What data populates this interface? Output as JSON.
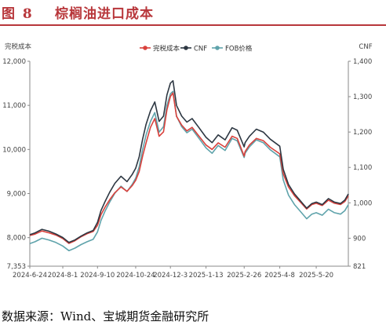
{
  "figure": {
    "label": "图 8",
    "title": "棕榈油进口成本"
  },
  "source": "数据来源：Wind、宝城期货金融研究所",
  "colors": {
    "duty_paid": "#d9413c",
    "cnf": "#2d3742",
    "fob": "#5fa3ab",
    "title": "#b8373b"
  },
  "chart_data": {
    "type": "line",
    "left_axis": {
      "label": "完税成本",
      "min": 7353,
      "max": 12000,
      "ticks": [
        7353,
        8000,
        9000,
        10000,
        11000,
        12000
      ],
      "tick_labels": [
        "7,353",
        "8,000",
        "9,000",
        "10,000",
        "11,000",
        "12,000"
      ]
    },
    "right_axis": {
      "label": "CNF",
      "min": 821,
      "max": 1400,
      "ticks": [
        821,
        900,
        1000,
        1100,
        1200,
        1300,
        1400
      ],
      "tick_labels": [
        "821",
        "900",
        "1,000",
        "1,100",
        "1,200",
        "1,300",
        "1,400"
      ]
    },
    "x_tick_labels": [
      "2024-6-24",
      "2024-8-1",
      "2024-9-10",
      "2024-10-24",
      "2024-12-3",
      "2025-1-13",
      "2025-2-26",
      "2025-4-8",
      "2025-5-20"
    ],
    "x_range": [
      "2024-6-24",
      "2025-6-26"
    ],
    "legend": {
      "position": "top-center",
      "entries": [
        "完税成本",
        "CNF",
        "FOB价格"
      ]
    },
    "grid": false,
    "series": [
      {
        "name": "完税成本",
        "axis": "left",
        "points": [
          [
            "2024-6-24",
            8050
          ],
          [
            "2024-6-30",
            8080
          ],
          [
            "2024-7-8",
            8150
          ],
          [
            "2024-7-16",
            8110
          ],
          [
            "2024-7-24",
            8060
          ],
          [
            "2024-8-1",
            7980
          ],
          [
            "2024-8-8",
            7870
          ],
          [
            "2024-8-15",
            7930
          ],
          [
            "2024-8-22",
            8020
          ],
          [
            "2024-8-29",
            8090
          ],
          [
            "2024-9-5",
            8140
          ],
          [
            "2024-9-10",
            8280
          ],
          [
            "2024-9-14",
            8520
          ],
          [
            "2024-9-19",
            8700
          ],
          [
            "2024-9-24",
            8860
          ],
          [
            "2024-9-30",
            9020
          ],
          [
            "2024-10-7",
            9150
          ],
          [
            "2024-10-14",
            9050
          ],
          [
            "2024-10-20",
            9180
          ],
          [
            "2024-10-24",
            9300
          ],
          [
            "2024-10-28",
            9500
          ],
          [
            "2024-11-1",
            9850
          ],
          [
            "2024-11-5",
            10150
          ],
          [
            "2024-11-10",
            10500
          ],
          [
            "2024-11-15",
            10700
          ],
          [
            "2024-11-20",
            10300
          ],
          [
            "2024-11-25",
            10400
          ],
          [
            "2024-11-29",
            10900
          ],
          [
            "2024-12-3",
            11200
          ],
          [
            "2024-12-6",
            11280
          ],
          [
            "2024-12-10",
            10750
          ],
          [
            "2024-12-16",
            10550
          ],
          [
            "2024-12-22",
            10420
          ],
          [
            "2024-12-28",
            10500
          ],
          [
            "2025-1-5",
            10300
          ],
          [
            "2025-1-13",
            10100
          ],
          [
            "2025-1-20",
            10000
          ],
          [
            "2025-1-27",
            10150
          ],
          [
            "2025-2-4",
            10050
          ],
          [
            "2025-2-12",
            10300
          ],
          [
            "2025-2-18",
            10250
          ],
          [
            "2025-2-26",
            9850
          ],
          [
            "2025-2-27",
            9950
          ],
          [
            "2025-3-4",
            10100
          ],
          [
            "2025-3-12",
            10250
          ],
          [
            "2025-3-20",
            10200
          ],
          [
            "2025-3-28",
            10050
          ],
          [
            "2025-4-8",
            9900
          ],
          [
            "2025-4-12",
            9450
          ],
          [
            "2025-4-18",
            9150
          ],
          [
            "2025-4-25",
            8950
          ],
          [
            "2025-5-2",
            8800
          ],
          [
            "2025-5-9",
            8650
          ],
          [
            "2025-5-15",
            8750
          ],
          [
            "2025-5-20",
            8780
          ],
          [
            "2025-5-27",
            8730
          ],
          [
            "2025-6-3",
            8850
          ],
          [
            "2025-6-10",
            8780
          ],
          [
            "2025-6-17",
            8750
          ],
          [
            "2025-6-22",
            8820
          ],
          [
            "2025-6-26",
            8950
          ]
        ]
      },
      {
        "name": "CNF",
        "axis": "right",
        "points": [
          [
            "2024-6-24",
            910
          ],
          [
            "2024-6-30",
            915
          ],
          [
            "2024-7-8",
            925
          ],
          [
            "2024-7-16",
            920
          ],
          [
            "2024-7-24",
            912
          ],
          [
            "2024-8-1",
            902
          ],
          [
            "2024-8-8",
            888
          ],
          [
            "2024-8-15",
            895
          ],
          [
            "2024-8-22",
            906
          ],
          [
            "2024-8-29",
            915
          ],
          [
            "2024-9-5",
            922
          ],
          [
            "2024-9-10",
            945
          ],
          [
            "2024-9-14",
            978
          ],
          [
            "2024-9-19",
            1005
          ],
          [
            "2024-9-24",
            1030
          ],
          [
            "2024-9-30",
            1055
          ],
          [
            "2024-10-7",
            1075
          ],
          [
            "2024-10-14",
            1060
          ],
          [
            "2024-10-20",
            1080
          ],
          [
            "2024-10-24",
            1098
          ],
          [
            "2024-10-28",
            1130
          ],
          [
            "2024-11-1",
            1180
          ],
          [
            "2024-11-5",
            1222
          ],
          [
            "2024-11-10",
            1260
          ],
          [
            "2024-11-15",
            1285
          ],
          [
            "2024-11-20",
            1230
          ],
          [
            "2024-11-25",
            1245
          ],
          [
            "2024-11-29",
            1305
          ],
          [
            "2024-12-3",
            1338
          ],
          [
            "2024-12-6",
            1345
          ],
          [
            "2024-12-10",
            1275
          ],
          [
            "2024-12-16",
            1245
          ],
          [
            "2024-12-22",
            1228
          ],
          [
            "2024-12-28",
            1238
          ],
          [
            "2025-1-5",
            1212
          ],
          [
            "2025-1-13",
            1185
          ],
          [
            "2025-1-20",
            1170
          ],
          [
            "2025-1-27",
            1192
          ],
          [
            "2025-2-4",
            1178
          ],
          [
            "2025-2-12",
            1212
          ],
          [
            "2025-2-18",
            1205
          ],
          [
            "2025-2-26",
            1158
          ],
          [
            "2025-2-27",
            1170
          ],
          [
            "2025-3-4",
            1188
          ],
          [
            "2025-3-12",
            1208
          ],
          [
            "2025-3-20",
            1200
          ],
          [
            "2025-3-28",
            1180
          ],
          [
            "2025-4-8",
            1160
          ],
          [
            "2025-4-12",
            1095
          ],
          [
            "2025-4-18",
            1052
          ],
          [
            "2025-4-25",
            1025
          ],
          [
            "2025-5-2",
            1005
          ],
          [
            "2025-5-9",
            985
          ],
          [
            "2025-5-15",
            998
          ],
          [
            "2025-5-20",
            1002
          ],
          [
            "2025-5-27",
            995
          ],
          [
            "2025-6-3",
            1012
          ],
          [
            "2025-6-10",
            1002
          ],
          [
            "2025-6-17",
            998
          ],
          [
            "2025-6-22",
            1008
          ],
          [
            "2025-6-26",
            1025
          ]
        ]
      },
      {
        "name": "FOB价格",
        "axis": "right",
        "points": [
          [
            "2024-6-24",
            885
          ],
          [
            "2024-6-30",
            890
          ],
          [
            "2024-7-8",
            900
          ],
          [
            "2024-7-16",
            895
          ],
          [
            "2024-7-24",
            888
          ],
          [
            "2024-8-1",
            878
          ],
          [
            "2024-8-8",
            865
          ],
          [
            "2024-8-15",
            872
          ],
          [
            "2024-8-22",
            882
          ],
          [
            "2024-8-29",
            890
          ],
          [
            "2024-9-5",
            897
          ],
          [
            "2024-9-10",
            918
          ],
          [
            "2024-9-14",
            950
          ],
          [
            "2024-9-19",
            978
          ],
          [
            "2024-9-24",
            1002
          ],
          [
            "2024-9-30",
            1027
          ],
          [
            "2024-10-7",
            1047
          ],
          [
            "2024-10-14",
            1032
          ],
          [
            "2024-10-20",
            1052
          ],
          [
            "2024-10-24",
            1070
          ],
          [
            "2024-10-28",
            1102
          ],
          [
            "2024-11-1",
            1150
          ],
          [
            "2024-11-5",
            1192
          ],
          [
            "2024-11-10",
            1230
          ],
          [
            "2024-11-15",
            1255
          ],
          [
            "2024-11-20",
            1200
          ],
          [
            "2024-11-25",
            1215
          ],
          [
            "2024-11-29",
            1275
          ],
          [
            "2024-12-3",
            1308
          ],
          [
            "2024-12-6",
            1315
          ],
          [
            "2024-12-10",
            1245
          ],
          [
            "2024-12-16",
            1215
          ],
          [
            "2024-12-22",
            1198
          ],
          [
            "2024-12-28",
            1208
          ],
          [
            "2025-1-5",
            1182
          ],
          [
            "2025-1-13",
            1155
          ],
          [
            "2025-1-20",
            1140
          ],
          [
            "2025-1-27",
            1162
          ],
          [
            "2025-2-4",
            1148
          ],
          [
            "2025-2-12",
            1182
          ],
          [
            "2025-2-18",
            1175
          ],
          [
            "2025-2-26",
            1128
          ],
          [
            "2025-2-27",
            1140
          ],
          [
            "2025-3-4",
            1158
          ],
          [
            "2025-3-12",
            1178
          ],
          [
            "2025-3-20",
            1170
          ],
          [
            "2025-3-28",
            1150
          ],
          [
            "2025-4-8",
            1130
          ],
          [
            "2025-4-12",
            1065
          ],
          [
            "2025-4-18",
            1022
          ],
          [
            "2025-4-25",
            995
          ],
          [
            "2025-5-2",
            975
          ],
          [
            "2025-5-9",
            955
          ],
          [
            "2025-5-15",
            968
          ],
          [
            "2025-5-20",
            972
          ],
          [
            "2025-5-27",
            965
          ],
          [
            "2025-6-3",
            982
          ],
          [
            "2025-6-10",
            972
          ],
          [
            "2025-6-17",
            968
          ],
          [
            "2025-6-22",
            978
          ],
          [
            "2025-6-26",
            995
          ]
        ]
      }
    ]
  }
}
